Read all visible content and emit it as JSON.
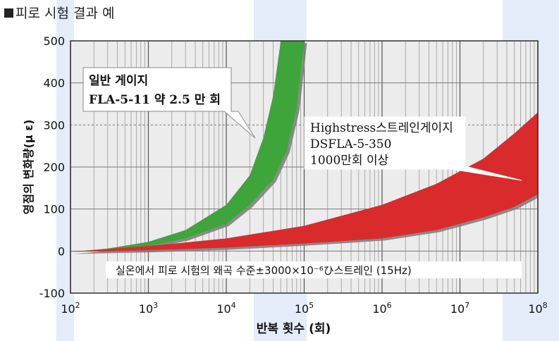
{
  "heading": {
    "square": "■",
    "text": "피로 시험 결과 예"
  },
  "chart_data": {
    "type": "area",
    "xscale": "log",
    "xlim": [
      100,
      100000000
    ],
    "ylim": [
      -100,
      500
    ],
    "ylabel": "영점의 변화량(μ ε)",
    "xlabel": "반복 횟수 (회)",
    "y_ticks": [
      "500",
      "400",
      "300",
      "200",
      "100",
      "0",
      "-100"
    ],
    "y_tick_values": [
      500,
      400,
      300,
      200,
      100,
      0,
      -100
    ],
    "x_ticks": [
      {
        "base": "10",
        "exp": "2",
        "value": 100
      },
      {
        "base": "10",
        "exp": "3",
        "value": 1000
      },
      {
        "base": "10",
        "exp": "4",
        "value": 10000
      },
      {
        "base": "10",
        "exp": "5",
        "value": 100000
      },
      {
        "base": "10",
        "exp": "6",
        "value": 1000000
      },
      {
        "base": "10",
        "exp": "7",
        "value": 10000000
      },
      {
        "base": "10",
        "exp": "8",
        "value": 100000000
      }
    ],
    "reference_line_y": 300,
    "series": [
      {
        "color": "#3ea53a",
        "upper": [
          [
            100,
            -2
          ],
          [
            300,
            6
          ],
          [
            1000,
            22
          ],
          [
            3000,
            50
          ],
          [
            10000,
            110
          ],
          [
            20000,
            180
          ],
          [
            30000,
            270
          ],
          [
            40000,
            370
          ],
          [
            50000,
            500
          ]
        ],
        "lower": [
          [
            100,
            -2
          ],
          [
            300,
            4
          ],
          [
            1000,
            12
          ],
          [
            3000,
            30
          ],
          [
            10000,
            65
          ],
          [
            20000,
            110
          ],
          [
            40000,
            170
          ],
          [
            60000,
            240
          ],
          [
            80000,
            340
          ],
          [
            100000,
            500
          ]
        ]
      },
      {
        "color": "#d92b2b",
        "upper": [
          [
            100,
            -2
          ],
          [
            1000,
            12
          ],
          [
            10000,
            30
          ],
          [
            100000,
            60
          ],
          [
            1000000,
            110
          ],
          [
            5000000,
            160
          ],
          [
            20000000,
            220
          ],
          [
            50000000,
            280
          ],
          [
            100000000,
            330
          ]
        ],
        "lower": [
          [
            100,
            -2
          ],
          [
            1000,
            2
          ],
          [
            10000,
            8
          ],
          [
            100000,
            18
          ],
          [
            1000000,
            30
          ],
          [
            5000000,
            50
          ],
          [
            20000000,
            80
          ],
          [
            50000000,
            105
          ],
          [
            100000000,
            135
          ]
        ]
      }
    ],
    "annotations": {
      "green": {
        "line1": "일반 게이지",
        "line2": "FLA-5-11 약 2.5 만 회"
      },
      "red": {
        "line1": "Highstress스트레인게이지",
        "line2": "DSFLA-5-350",
        "line3": "1000만회 이상"
      },
      "note": "실온에서 피로 시험의 왜곡 수준±3000×10⁻⁶ひ스트레인  (15Hz)"
    }
  }
}
